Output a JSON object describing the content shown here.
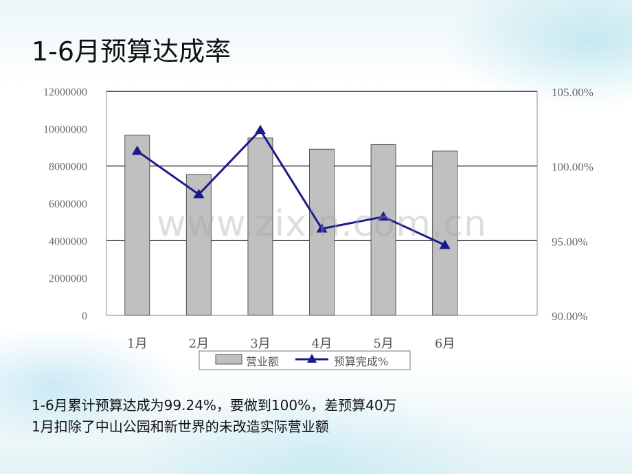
{
  "title": "1-6月预算达成率",
  "watermark": "www.zixin.com.cn",
  "notes": [
    "1-6月累计预算达成为99.24%，要做到100%，差预算40万",
    "1月扣除了中山公园和新世界的未改造实际营业额"
  ],
  "chart_data": {
    "type": "bar",
    "categories": [
      "1月",
      "2月",
      "3月",
      "4月",
      "5月",
      "6月"
    ],
    "series": [
      {
        "name": "营业额",
        "type": "bar",
        "axis": "left",
        "color": "#c0c0c0",
        "values": [
          9650000,
          7550000,
          9500000,
          8900000,
          9150000,
          8800000
        ]
      },
      {
        "name": "预算完成%",
        "type": "line",
        "axis": "right",
        "color": "#1a1a8c",
        "marker": "triangle",
        "values": [
          101.0,
          98.1,
          102.4,
          95.8,
          96.6,
          94.7
        ]
      }
    ],
    "left_axis": {
      "min": 0,
      "max": 12000000,
      "ticks": [
        "0",
        "2000000",
        "4000000",
        "6000000",
        "8000000",
        "10000000",
        "12000000"
      ]
    },
    "right_axis": {
      "min": 90,
      "max": 105,
      "ticks": [
        "90.00%",
        "95.00%",
        "100.00%",
        "105.00%"
      ]
    },
    "gridlines": [
      8000000,
      4000000
    ],
    "legend_position": "bottom",
    "colors": {
      "bar": "#c0c0c0",
      "line": "#1a1a8c",
      "grid": "#000000",
      "plot_bg": "#ffffff"
    }
  }
}
